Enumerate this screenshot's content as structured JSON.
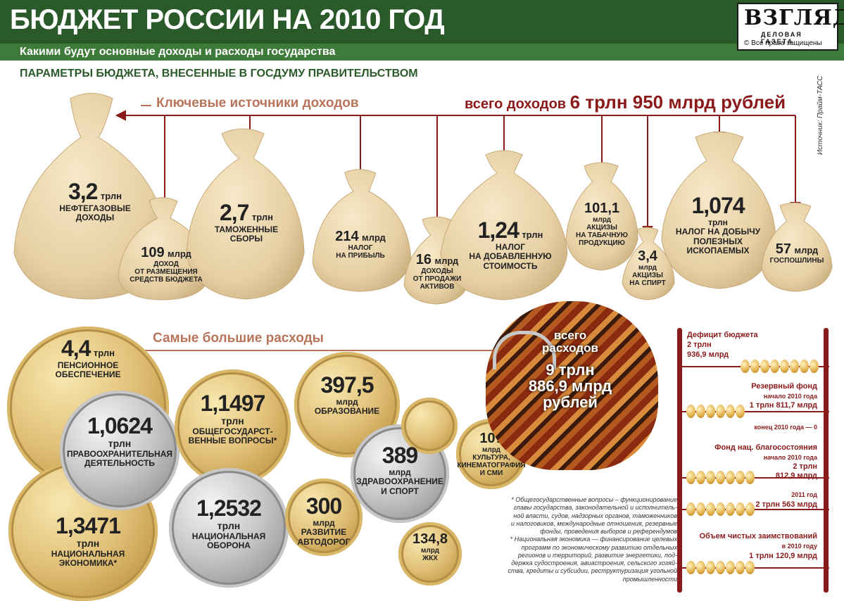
{
  "header": {
    "title": "БЮДЖЕТ РОССИИ НА 2010 ГОД",
    "subtitle": "Какими будут основные доходы и расходы государства",
    "logo_name": "ВЗГЛЯД",
    "logo_sub": "ДЕЛОВАЯ ГАЗЕТА",
    "copyright": "Все права защищены"
  },
  "params_title": "ПАРАМЕТРЫ БЮДЖЕТА, ВНЕСЕННЫЕ В ГОСДУМУ ПРАВИТЕЛЬСТВОМ",
  "source": "Источник: Прайм-ТАСС",
  "income": {
    "title": "Ключевые источники доходов",
    "total_prefix": "всего доходов",
    "total_value": "6 трлн 950 млрд рублей",
    "items": [
      {
        "value": "3,2",
        "unit": "трлн",
        "desc1": "НЕФТЕГАЗОВЫЕ",
        "desc2": "ДОХОДЫ",
        "desc3": ""
      },
      {
        "value": "109",
        "unit": "млрд",
        "desc1": "ДОХОД",
        "desc2": "ОТ РАЗМЕЩЕНИЯ",
        "desc3": "СРЕДСТВ БЮДЖЕТА"
      },
      {
        "value": "2,7",
        "unit": "трлн",
        "desc1": "ТАМОЖЕННЫЕ",
        "desc2": "СБОРЫ",
        "desc3": ""
      },
      {
        "value": "214",
        "unit": "млрд",
        "desc1": "НАЛОГ",
        "desc2": "НА ПРИБЫЛЬ",
        "desc3": ""
      },
      {
        "value": "16",
        "unit": "млрд",
        "desc1": "ДОХОДЫ",
        "desc2": "ОТ ПРОДАЖИ",
        "desc3": "АКТИВОВ"
      },
      {
        "value": "1,24",
        "unit": "трлн",
        "desc1": "НАЛОГ",
        "desc2": "НА ДОБАВЛЕННУЮ",
        "desc3": "СТОИМОСТЬ"
      },
      {
        "value": "101,1",
        "unit": "млрд",
        "desc1": "АКЦИЗЫ",
        "desc2": "НА ТАБАЧНУЮ",
        "desc3": "ПРОДУКЦИЮ"
      },
      {
        "value": "3,4",
        "unit": "млрд",
        "desc1": "АКЦИЗЫ",
        "desc2": "НА СПИРТ",
        "desc3": ""
      },
      {
        "value": "1,074",
        "unit": "трлн",
        "desc1": "НАЛОГ НА ДОБЫЧУ",
        "desc2": "ПОЛЕЗНЫХ",
        "desc3": "ИСКОПАЕМЫХ"
      },
      {
        "value": "57",
        "unit": "млрд",
        "desc1": "ГОСПОШЛИНЫ",
        "desc2": "",
        "desc3": ""
      }
    ]
  },
  "expenses": {
    "title": "Самые большие расходы",
    "total": {
      "line1": "всего",
      "line2": "расходов",
      "line3": "9 трлн",
      "line4": "886,9 млрд",
      "line5": "рублей"
    },
    "items": [
      {
        "value": "4,4",
        "unit": "трлн",
        "desc1": "ПЕНСИОННОЕ",
        "desc2": "ОБЕСПЕЧЕНИЕ"
      },
      {
        "value": "1,0624",
        "unit": "трлн",
        "desc1": "ПРАВООХРАНИТЕЛЬНАЯ",
        "desc2": "ДЕЯТЕЛЬНОСТЬ"
      },
      {
        "value": "1,3471",
        "unit": "трлн",
        "desc1": "НАЦИОНАЛЬНАЯ",
        "desc2": "ЭКОНОМИКА*"
      },
      {
        "value": "1,1497",
        "unit": "трлн",
        "desc1": "ОБЩЕГОСУДАРСТ-",
        "desc2": "ВЕННЫЕ ВОПРОСЫ*"
      },
      {
        "value": "1,2532",
        "unit": "трлн",
        "desc1": "НАЦИОНАЛЬНАЯ",
        "desc2": "ОБОРОНА"
      },
      {
        "value": "397,5",
        "unit": "млрд",
        "desc1": "ОБРАЗОВАНИЕ",
        "desc2": ""
      },
      {
        "value": "300",
        "unit": "млрд",
        "desc1": "РАЗВИТИЕ",
        "desc2": "АВТОДОРОГ"
      },
      {
        "value": "389",
        "unit": "млрд",
        "desc1": "ЗДРАВООХРАНЕНИЕ",
        "desc2": "И СПОРТ"
      },
      {
        "value": "134,8",
        "unit": "млрд",
        "desc1": "ЖКХ",
        "desc2": ""
      },
      {
        "value": "107",
        "unit": "млрд",
        "desc1": "КУЛЬТУРА,",
        "desc2": "КИНЕМАТОГРАФИЯ",
        "desc3": "И СМИ"
      }
    ]
  },
  "notes": [
    "* Общегосударственные вопросы – функционирование",
    "главы государства, законодательной и исполнитель-",
    "ной власти, судов, надзорных органов, таможенников",
    "и налоговиков, международные отношения, резервные",
    "фонды, проведения выборов и референдумов",
    "* Национальная экономика — финансирование целевых",
    "программ по экономическому развитию отдельных",
    "регионов и территорий, развитие энергетики, под-",
    "держка судостроения, авиастроения, сельского хозяй-",
    "ства, кредиты и субсидии, реструктуризация угольной",
    "промышленности"
  ],
  "abacus": {
    "deficit_title": "Дефицит бюджета",
    "deficit_v1": "2 трлн",
    "deficit_v2": "936,9 млрд",
    "reserve_title": "Резервный фонд",
    "reserve_start_label": "начало 2010 года",
    "reserve_start_value": "1 трлн 811,7 млрд",
    "reserve_end": "конец 2010 года — 0",
    "nwf_title": "Фонд нац. благосостояния",
    "nwf_start_label": "начало 2010 года",
    "nwf_v1": "2 трлн",
    "nwf_v2": "812,9 млрд",
    "nwf_2011_label": "2011 год",
    "nwf_2011_value": "2 трлн 563 млрд",
    "borrow_title": "Объем чистых заимствований",
    "borrow_label": "в 2010 году",
    "borrow_value": "1 трлн 120,9 млрд"
  }
}
